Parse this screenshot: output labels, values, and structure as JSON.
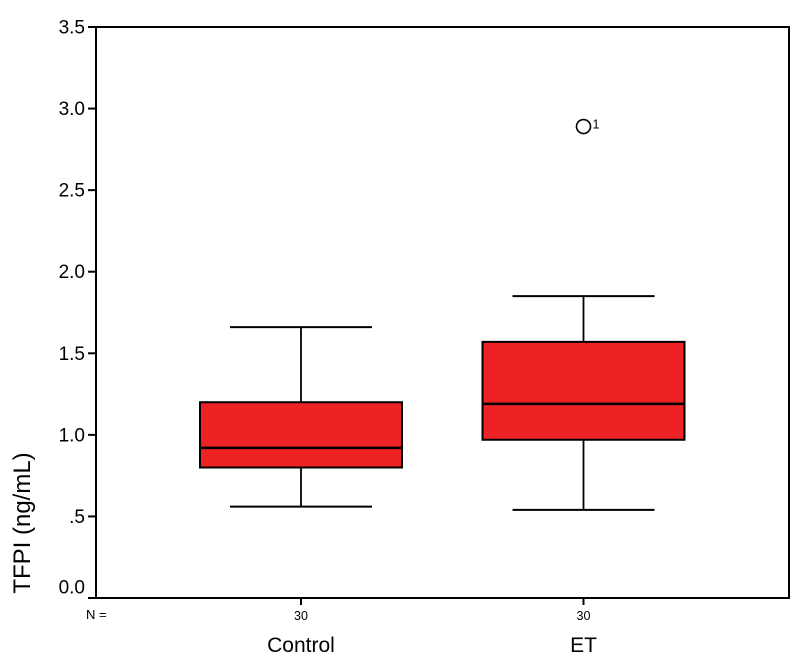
{
  "chart_data": {
    "type": "boxplot",
    "title": "",
    "ylabel": "TFPI (ng/mL)",
    "xlabel": "",
    "ylim": [
      0.0,
      3.5
    ],
    "ytick_step": 0.5,
    "ytick_labels": [
      "0.0",
      ".5",
      "1.0",
      "1.5",
      "2.0",
      "2.5",
      "3.0",
      "3.5"
    ],
    "grid": "off",
    "legend": "none",
    "n_label_prefix": "N =",
    "categories": [
      {
        "label": "Control",
        "n": "30",
        "whisker_low": 0.56,
        "q1": 0.8,
        "median": 0.92,
        "q3": 1.2,
        "whisker_high": 1.66,
        "outliers": []
      },
      {
        "label": "ET",
        "n": "30",
        "whisker_low": 0.54,
        "q1": 0.97,
        "median": 1.19,
        "q3": 1.57,
        "whisker_high": 1.85,
        "outliers": [
          {
            "value": 2.89,
            "case_label": "1"
          }
        ]
      }
    ],
    "colors": {
      "box_fill": "#ED2224",
      "line": "#000000",
      "background": "#FFFFFF"
    }
  }
}
